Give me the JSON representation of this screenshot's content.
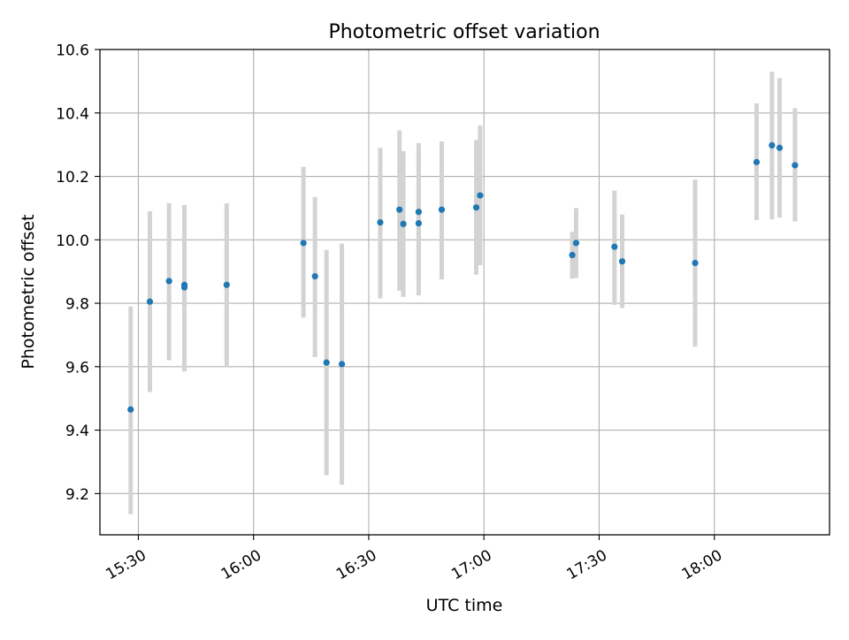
{
  "chart_data": {
    "type": "scatter",
    "title": "Photometric offset variation",
    "xlabel": "UTC time",
    "ylabel": "Photometric offset",
    "x_tick_labels": [
      "15:30",
      "16:00",
      "16:30",
      "17:00",
      "17:30",
      "18:00"
    ],
    "x_tick_values": [
      "15:30",
      "16:00",
      "16:30",
      "17:00",
      "17:30",
      "18:00"
    ],
    "xlim": [
      "15:20",
      "18:30"
    ],
    "ylim": [
      9.07,
      10.6
    ],
    "y_ticks": [
      9.2,
      9.4,
      9.6,
      9.8,
      10.0,
      10.2,
      10.4,
      10.6
    ],
    "y_tick_labels": [
      "9.2",
      "9.4",
      "9.6",
      "9.8",
      "10.0",
      "10.2",
      "10.4",
      "10.6"
    ],
    "grid": true,
    "colors": {
      "point": "#1f77b4",
      "errorbar": "#d3d3d3",
      "grid": "#b0b0b0"
    },
    "points": [
      {
        "x": "15:28",
        "y": 9.465,
        "err_low": 9.135,
        "err_high": 9.79
      },
      {
        "x": "15:33",
        "y": 9.805,
        "err_low": 9.52,
        "err_high": 10.09
      },
      {
        "x": "15:38",
        "y": 9.87,
        "err_low": 9.62,
        "err_high": 10.115
      },
      {
        "x": "15:42",
        "y": 9.85,
        "err_low": 9.585,
        "err_high": 10.11
      },
      {
        "x": "15:42",
        "y": 9.858,
        "err_low": 9.6,
        "err_high": 10.105
      },
      {
        "x": "15:53",
        "y": 9.858,
        "err_low": 9.6,
        "err_high": 10.115
      },
      {
        "x": "16:13",
        "y": 9.99,
        "err_low": 9.755,
        "err_high": 10.23
      },
      {
        "x": "16:16",
        "y": 9.885,
        "err_low": 9.63,
        "err_high": 10.135
      },
      {
        "x": "16:19",
        "y": 9.613,
        "err_low": 9.258,
        "err_high": 9.968
      },
      {
        "x": "16:23",
        "y": 9.608,
        "err_low": 9.228,
        "err_high": 9.988
      },
      {
        "x": "16:33",
        "y": 10.055,
        "err_low": 9.815,
        "err_high": 10.29
      },
      {
        "x": "16:38",
        "y": 10.095,
        "err_low": 9.84,
        "err_high": 10.345
      },
      {
        "x": "16:39",
        "y": 10.05,
        "err_low": 9.82,
        "err_high": 10.28
      },
      {
        "x": "16:43",
        "y": 10.088,
        "err_low": 9.87,
        "err_high": 10.305
      },
      {
        "x": "16:43",
        "y": 10.052,
        "err_low": 9.825,
        "err_high": 10.28
      },
      {
        "x": "16:49",
        "y": 10.095,
        "err_low": 9.875,
        "err_high": 10.31
      },
      {
        "x": "16:58",
        "y": 10.102,
        "err_low": 9.89,
        "err_high": 10.315
      },
      {
        "x": "16:59",
        "y": 10.14,
        "err_low": 9.92,
        "err_high": 10.36
      },
      {
        "x": "17:23",
        "y": 9.952,
        "err_low": 9.878,
        "err_high": 10.025
      },
      {
        "x": "17:24",
        "y": 9.99,
        "err_low": 9.88,
        "err_high": 10.1
      },
      {
        "x": "17:34",
        "y": 9.978,
        "err_low": 9.795,
        "err_high": 10.155
      },
      {
        "x": "17:36",
        "y": 9.932,
        "err_low": 9.785,
        "err_high": 10.08
      },
      {
        "x": "17:55",
        "y": 9.927,
        "err_low": 9.663,
        "err_high": 10.19
      },
      {
        "x": "18:11",
        "y": 10.245,
        "err_low": 10.062,
        "err_high": 10.43
      },
      {
        "x": "18:15",
        "y": 10.298,
        "err_low": 10.065,
        "err_high": 10.53
      },
      {
        "x": "18:17",
        "y": 10.29,
        "err_low": 10.07,
        "err_high": 10.51
      },
      {
        "x": "18:21",
        "y": 10.235,
        "err_low": 10.058,
        "err_high": 10.415
      }
    ]
  }
}
